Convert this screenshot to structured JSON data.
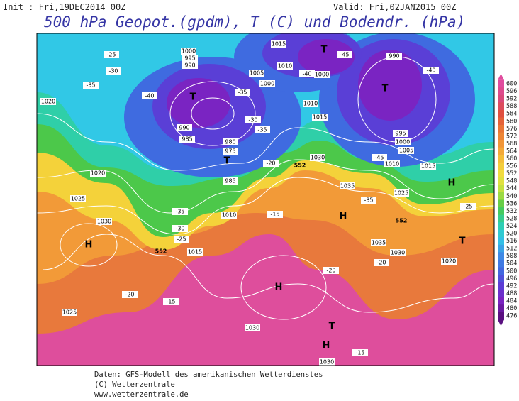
{
  "header": {
    "init": "Init : Fri,19DEC2014 00Z",
    "valid": "Valid: Fri,02JAN2015 00Z",
    "title": "500 hPa Geopot.(gpdm), T (C) und Bodendr. (hPa)"
  },
  "colorbar": {
    "ticks": [
      600,
      596,
      592,
      588,
      584,
      580,
      576,
      572,
      568,
      564,
      560,
      556,
      552,
      548,
      544,
      540,
      536,
      532,
      528,
      524,
      520,
      516,
      512,
      508,
      504,
      500,
      496,
      492,
      488,
      484,
      480,
      476
    ]
  },
  "map": {
    "pressure_centers": [
      "H",
      "H",
      "H",
      "H",
      "H",
      "T",
      "T",
      "T",
      "T",
      "T",
      "T"
    ],
    "isobar_labels": [
      1000,
      995,
      990,
      1005,
      1000,
      1015,
      1010,
      1000,
      990,
      1020,
      1020,
      1025,
      1030,
      1010,
      1015,
      1025,
      1030,
      1030,
      1035,
      1035,
      1030,
      1020,
      1015,
      1010,
      1005,
      1000,
      995,
      1025,
      1030,
      1015,
      1010,
      990,
      985,
      980,
      975,
      985
    ],
    "temperature_labels": [
      -25,
      -30,
      -35,
      -40,
      -40,
      -45,
      -40,
      -35,
      -30,
      -35,
      -20,
      -15,
      -35,
      -30,
      -25,
      -20,
      -15,
      -20,
      -20,
      -15,
      -25,
      -45,
      -35
    ],
    "geopotential_labels": [
      552,
      552,
      552
    ]
  },
  "footer": {
    "line1": "Daten: GFS-Modell des amerikanischen Wetterdienstes",
    "line2": "(C) Wetterzentrale",
    "line3": "www.wetterzentrale.de"
  }
}
